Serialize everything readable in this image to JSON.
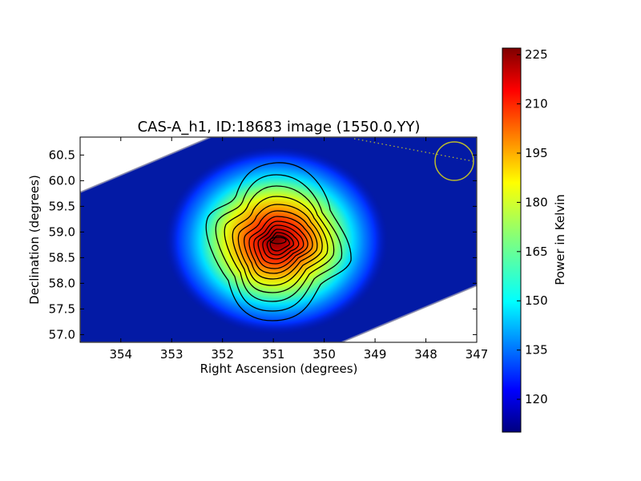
{
  "chart_data": {
    "type": "heatmap",
    "title": "CAS-A_h1, ID:18683 image (1550.0,YY)",
    "xlabel": "Right Ascension (degrees)",
    "ylabel": "Declination (degrees)",
    "xlim": [
      354.8,
      347.0
    ],
    "ylim": [
      56.85,
      60.85
    ],
    "x_ticks": [
      354,
      353,
      352,
      351,
      350,
      349,
      348,
      347
    ],
    "y_ticks": [
      57.0,
      57.5,
      58.0,
      58.5,
      59.0,
      59.5,
      60.0,
      60.5
    ],
    "colorbar": {
      "label": "Power in Kelvin",
      "range": [
        110,
        227
      ],
      "ticks": [
        120,
        135,
        150,
        165,
        180,
        195,
        210,
        225
      ],
      "colormap": "jet"
    },
    "peak": {
      "ra": 350.85,
      "dec": 58.82,
      "value": 227
    },
    "background_value": 112,
    "contours": true,
    "beam_marker": {
      "ra": 347.45,
      "dec": 60.38,
      "color": "#bcbc2c"
    }
  }
}
